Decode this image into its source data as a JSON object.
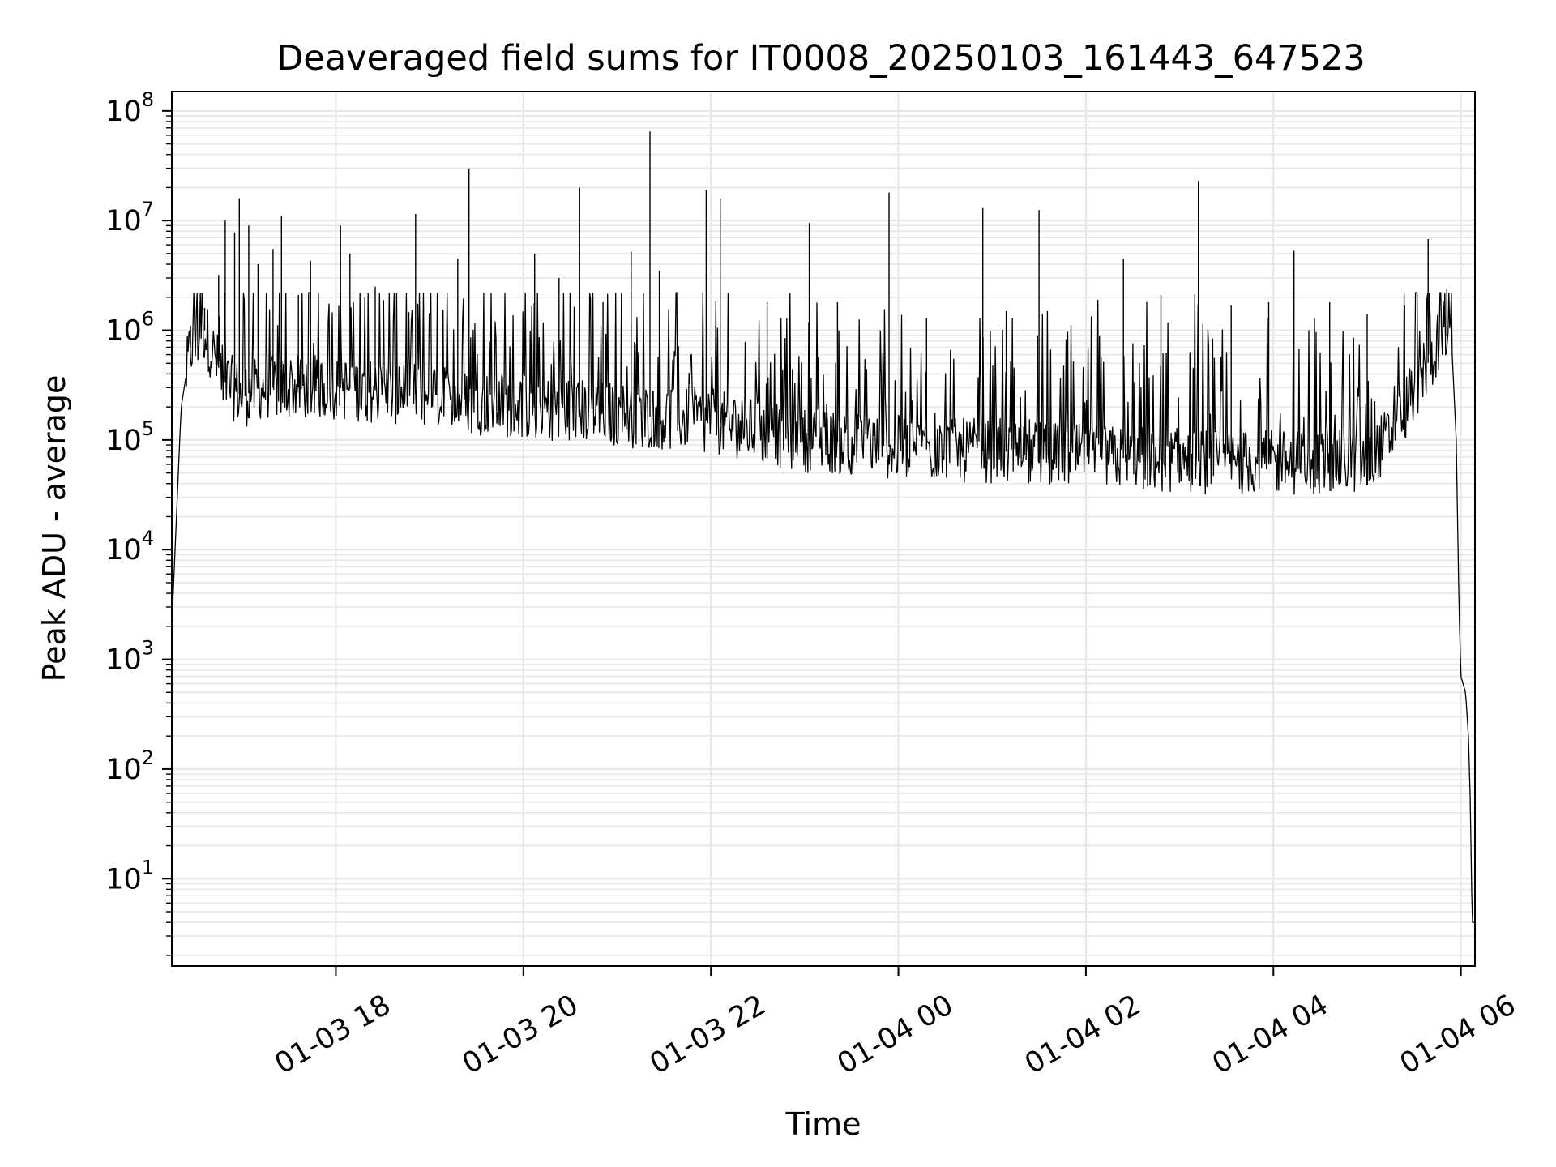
{
  "chart_data": {
    "type": "line",
    "title": "Deaveraged field sums for IT0008_20250103_161443_647523",
    "xlabel": "Time",
    "ylabel": "Peak ADU - average",
    "yscale": "log",
    "ylim": [
      1.6,
      150000000
    ],
    "xlim_hours": [
      16.25,
      30.15
    ],
    "x_ticks": [
      {
        "hour": 18,
        "label": "01-03 18"
      },
      {
        "hour": 20,
        "label": "01-03 20"
      },
      {
        "hour": 22,
        "label": "01-03 22"
      },
      {
        "hour": 24,
        "label": "01-04 00"
      },
      {
        "hour": 26,
        "label": "01-04 02"
      },
      {
        "hour": 28,
        "label": "01-04 04"
      },
      {
        "hour": 30,
        "label": "01-04 06"
      }
    ],
    "y_ticks": [
      {
        "exp": 1,
        "base": "10",
        "sup": "1"
      },
      {
        "exp": 2,
        "base": "10",
        "sup": "2"
      },
      {
        "exp": 3,
        "base": "10",
        "sup": "3"
      },
      {
        "exp": 4,
        "base": "10",
        "sup": "4"
      },
      {
        "exp": 5,
        "base": "10",
        "sup": "5"
      },
      {
        "exp": 6,
        "base": "10",
        "sup": "6"
      },
      {
        "exp": 7,
        "base": "10",
        "sup": "7"
      },
      {
        "exp": 8,
        "base": "10",
        "sup": "8"
      }
    ],
    "grid": true,
    "line_color": "#000000",
    "series": [
      {
        "name": "Peak ADU - average",
        "points": [
          [
            16.25,
            2000
          ],
          [
            16.3,
            20000
          ],
          [
            16.35,
            200000
          ],
          [
            16.45,
            700000
          ],
          [
            16.6,
            1000000
          ],
          [
            16.8,
            350000
          ],
          [
            17.0,
            250000
          ],
          [
            17.2,
            300000
          ],
          [
            17.5,
            300000
          ],
          [
            18.0,
            300000
          ],
          [
            18.5,
            280000
          ],
          [
            19.0,
            250000
          ],
          [
            19.5,
            220000
          ],
          [
            20.0,
            200000
          ],
          [
            20.5,
            190000
          ],
          [
            21.0,
            170000
          ],
          [
            21.5,
            160000
          ],
          [
            22.0,
            150000
          ],
          [
            22.5,
            120000
          ],
          [
            23.0,
            100000
          ],
          [
            23.5,
            95000
          ],
          [
            24.0,
            85000
          ],
          [
            24.5,
            80000
          ],
          [
            25.0,
            80000
          ],
          [
            25.5,
            75000
          ],
          [
            26.0,
            70000
          ],
          [
            26.5,
            68000
          ],
          [
            27.0,
            65000
          ],
          [
            27.5,
            62000
          ],
          [
            28.0,
            62000
          ],
          [
            28.5,
            62000
          ],
          [
            29.0,
            65000
          ],
          [
            29.3,
            120000
          ],
          [
            29.5,
            300000
          ],
          [
            29.7,
            600000
          ],
          [
            29.8,
            1000000
          ],
          [
            29.9,
            800000
          ],
          [
            29.95,
            100000
          ],
          [
            29.98,
            3000
          ],
          [
            30.0,
            700
          ],
          [
            30.05,
            500
          ],
          [
            30.08,
            200
          ],
          [
            30.1,
            50
          ],
          [
            30.12,
            4
          ],
          [
            30.15,
            4
          ]
        ],
        "spikes": [
          [
            16.45,
            1100000
          ],
          [
            16.6,
            1600000
          ],
          [
            16.75,
            3200000
          ],
          [
            16.82,
            10000000
          ],
          [
            16.92,
            7800000
          ],
          [
            16.97,
            16000000
          ],
          [
            17.07,
            9000000
          ],
          [
            17.17,
            4000000
          ],
          [
            17.33,
            5500000
          ],
          [
            17.42,
            11000000
          ],
          [
            17.6,
            2100000
          ],
          [
            17.73,
            4300000
          ],
          [
            18.05,
            9000000
          ],
          [
            18.15,
            5000000
          ],
          [
            18.42,
            2500000
          ],
          [
            18.85,
            11500000
          ],
          [
            19.3,
            4500000
          ],
          [
            19.42,
            30000000
          ],
          [
            20.12,
            5000000
          ],
          [
            20.38,
            3000000
          ],
          [
            20.6,
            20000000
          ],
          [
            20.85,
            1800000
          ],
          [
            21.15,
            5200000
          ],
          [
            21.35,
            65000000
          ],
          [
            21.45,
            3500000
          ],
          [
            21.95,
            19000000
          ],
          [
            22.1,
            16000000
          ],
          [
            22.6,
            1800000
          ],
          [
            23.05,
            9500000
          ],
          [
            23.35,
            1800000
          ],
          [
            23.9,
            18000000
          ],
          [
            24.3,
            1300000
          ],
          [
            24.9,
            13000000
          ],
          [
            25.15,
            1500000
          ],
          [
            25.5,
            12500000
          ],
          [
            26.4,
            4500000
          ],
          [
            26.8,
            2100000
          ],
          [
            27.2,
            23000000
          ],
          [
            27.55,
            1700000
          ],
          [
            27.95,
            1800000
          ],
          [
            28.22,
            5300000
          ],
          [
            28.6,
            1800000
          ],
          [
            29.0,
            1400000
          ],
          [
            29.4,
            1700000
          ],
          [
            29.65,
            6800000
          ],
          [
            29.85,
            2400000
          ]
        ]
      }
    ]
  }
}
